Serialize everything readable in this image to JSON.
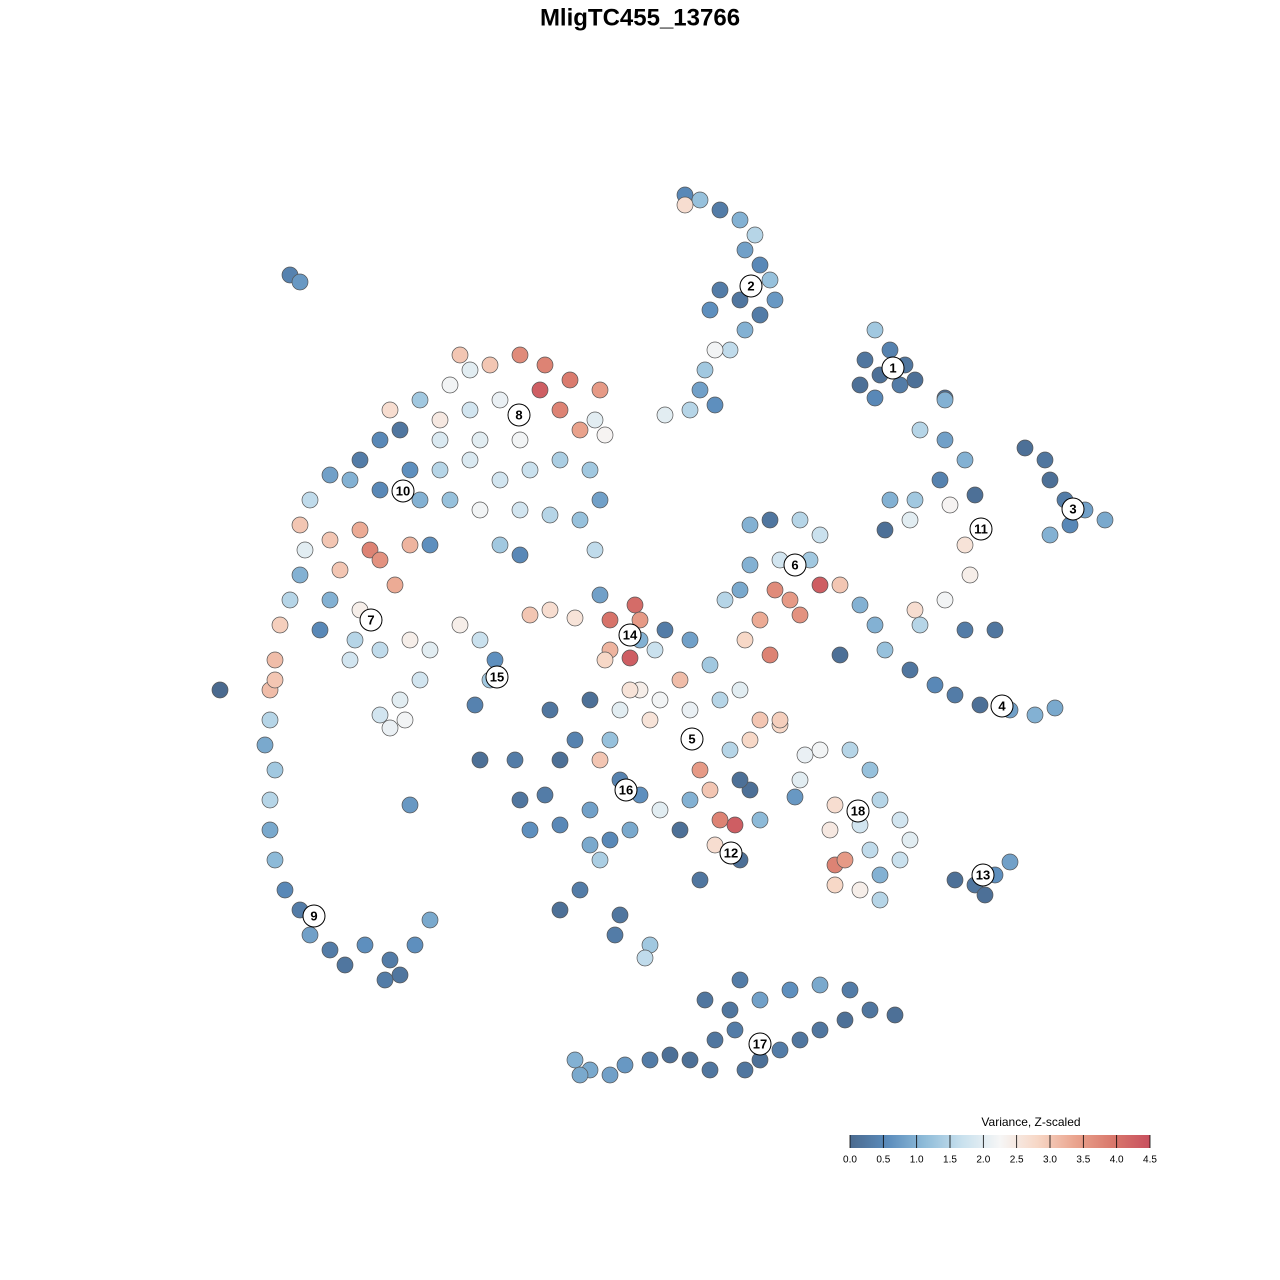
{
  "chart_data": {
    "type": "scatter",
    "title": "MligTC455_13766",
    "xlim": [
      0,
      1280
    ],
    "ylim": [
      1280,
      0
    ],
    "x": [
      685,
      700,
      720,
      740,
      755,
      745,
      760,
      770,
      775,
      760,
      740,
      720,
      710,
      745,
      730,
      715,
      705,
      700,
      715,
      690,
      665,
      685,
      875,
      865,
      880,
      900,
      915,
      875,
      890,
      905,
      860,
      945,
      1025,
      1045,
      1050,
      1065,
      1085,
      1105,
      1050,
      1070,
      920,
      945,
      965,
      940,
      915,
      890,
      885,
      910,
      950,
      975,
      965,
      970,
      945,
      915,
      920,
      965,
      995,
      945,
      860,
      875,
      885,
      910,
      935,
      955,
      980,
      1010,
      1035,
      1055,
      840,
      750,
      770,
      800,
      820,
      810,
      780,
      750,
      740,
      775,
      790,
      760,
      800,
      820,
      840,
      770,
      745,
      725,
      390,
      420,
      450,
      470,
      490,
      520,
      545,
      570,
      600,
      540,
      560,
      580,
      605,
      500,
      470,
      440,
      400,
      380,
      360,
      350,
      330,
      310,
      300,
      305,
      300,
      290,
      280,
      330,
      360,
      370,
      340,
      380,
      395,
      410,
      360,
      330,
      320,
      380,
      410,
      440,
      470,
      500,
      530,
      560,
      590,
      600,
      580,
      550,
      520,
      480,
      450,
      420,
      430,
      500,
      520,
      595,
      440,
      480,
      520,
      460,
      595,
      350,
      380,
      410,
      430,
      420,
      400,
      380,
      405,
      390,
      355,
      275,
      270,
      275,
      220,
      270,
      265,
      275,
      270,
      270,
      275,
      285,
      300,
      310,
      330,
      345,
      365,
      390,
      400,
      385,
      415,
      430,
      410,
      290,
      300,
      460,
      480,
      495,
      490,
      475,
      480,
      515,
      530,
      550,
      575,
      600,
      610,
      635,
      610,
      630,
      640,
      605,
      640,
      665,
      690,
      710,
      680,
      660,
      640,
      620,
      650,
      690,
      720,
      740,
      760,
      780,
      750,
      730,
      700,
      710,
      690,
      720,
      735,
      715,
      700,
      740,
      760,
      750,
      680,
      660,
      640,
      620,
      600,
      610,
      590,
      575,
      560,
      545,
      520,
      530,
      560,
      590,
      610,
      630,
      600,
      580,
      560,
      620,
      615,
      650,
      645,
      550,
      590,
      655,
      630,
      800,
      795,
      740,
      820,
      850,
      870,
      880,
      900,
      910,
      900,
      880,
      860,
      835,
      835,
      845,
      830,
      835,
      860,
      870,
      780,
      805,
      880,
      955,
      975,
      995,
      1010,
      985,
      575,
      590,
      610,
      625,
      650,
      670,
      690,
      710,
      715,
      735,
      745,
      760,
      780,
      800,
      820,
      845,
      870,
      895,
      760,
      790,
      820,
      850,
      740,
      705,
      730,
      580
    ],
    "y": [
      195,
      200,
      210,
      220,
      235,
      250,
      265,
      280,
      300,
      315,
      300,
      290,
      310,
      330,
      350,
      350,
      370,
      390,
      405,
      410,
      415,
      205,
      330,
      360,
      375,
      385,
      380,
      398,
      350,
      365,
      385,
      398,
      448,
      460,
      480,
      500,
      510,
      520,
      535,
      525,
      430,
      440,
      460,
      480,
      500,
      500,
      530,
      520,
      505,
      495,
      545,
      575,
      600,
      610,
      625,
      630,
      630,
      400,
      605,
      625,
      650,
      670,
      685,
      695,
      705,
      710,
      715,
      708,
      655,
      525,
      520,
      520,
      535,
      560,
      560,
      565,
      590,
      590,
      600,
      620,
      615,
      585,
      585,
      655,
      640,
      600,
      410,
      400,
      385,
      370,
      365,
      355,
      365,
      380,
      390,
      390,
      410,
      430,
      435,
      400,
      410,
      420,
      430,
      440,
      460,
      480,
      475,
      500,
      525,
      550,
      575,
      600,
      625,
      540,
      530,
      550,
      570,
      560,
      585,
      545,
      610,
      600,
      630,
      490,
      470,
      470,
      460,
      480,
      470,
      460,
      470,
      500,
      520,
      515,
      510,
      510,
      500,
      500,
      545,
      545,
      555,
      550,
      440,
      440,
      440,
      355,
      420,
      660,
      650,
      640,
      650,
      680,
      700,
      715,
      720,
      728,
      640,
      660,
      690,
      680,
      690,
      720,
      745,
      770,
      800,
      830,
      860,
      890,
      910,
      935,
      950,
      965,
      945,
      960,
      975,
      980,
      945,
      920,
      805,
      275,
      282,
      625,
      640,
      660,
      680,
      705,
      760,
      760,
      615,
      610,
      618,
      595,
      620,
      605,
      650,
      658,
      620,
      660,
      640,
      630,
      640,
      665,
      680,
      700,
      690,
      710,
      720,
      710,
      700,
      690,
      720,
      725,
      740,
      750,
      770,
      790,
      800,
      820,
      825,
      845,
      880,
      860,
      820,
      790,
      830,
      810,
      795,
      780,
      760,
      740,
      700,
      740,
      760,
      795,
      800,
      830,
      825,
      810,
      840,
      830,
      860,
      890,
      910,
      915,
      935,
      945,
      958,
      710,
      845,
      650,
      690,
      780,
      797,
      780,
      750,
      750,
      770,
      800,
      820,
      840,
      860,
      875,
      890,
      885,
      865,
      860,
      830,
      805,
      825,
      850,
      720,
      755,
      900,
      880,
      885,
      875,
      862,
      895,
      1060,
      1070,
      1075,
      1065,
      1060,
      1055,
      1060,
      1070,
      1040,
      1030,
      1070,
      1060,
      1050,
      1040,
      1030,
      1020,
      1010,
      1015,
      1000,
      990,
      985,
      990,
      980,
      1000,
      1010,
      1075
    ],
    "values": [
      0.5,
      1.2,
      0.3,
      1.0,
      1.5,
      0.8,
      0.5,
      1.2,
      0.7,
      0.3,
      0.2,
      0.3,
      0.6,
      1.0,
      1.6,
      2.2,
      1.3,
      0.8,
      0.6,
      1.5,
      2.0,
      2.7,
      1.3,
      0.2,
      0.1,
      0.3,
      0.1,
      0.5,
      0.4,
      0.2,
      0.1,
      0.1,
      0.1,
      0.2,
      0.1,
      0.3,
      0.8,
      0.9,
      1.0,
      0.5,
      1.5,
      0.8,
      1.0,
      0.4,
      1.3,
      1.0,
      0.1,
      2.0,
      2.3,
      0.1,
      2.6,
      2.4,
      2.2,
      2.7,
      1.5,
      0.3,
      0.2,
      1.0,
      1.0,
      1.0,
      1.2,
      0.2,
      0.5,
      0.3,
      0.1,
      0.8,
      1.0,
      0.9,
      0.1,
      1.0,
      0.2,
      1.5,
      1.7,
      1.3,
      1.8,
      1.0,
      0.9,
      3.7,
      3.5,
      3.3,
      3.6,
      4.3,
      3.0,
      3.8,
      2.8,
      1.5,
      2.7,
      1.3,
      2.2,
      2.0,
      3.0,
      3.7,
      3.8,
      3.9,
      3.5,
      4.3,
      3.8,
      3.4,
      2.3,
      2.1,
      1.8,
      2.5,
      0.2,
      0.5,
      0.3,
      1.0,
      0.8,
      1.6,
      3.0,
      2.0,
      1.0,
      1.5,
      2.9,
      3.0,
      3.3,
      3.8,
      3.0,
      3.6,
      3.3,
      3.2,
      2.4,
      1.0,
      0.5,
      0.5,
      0.6,
      1.5,
      1.9,
      1.8,
      1.7,
      1.4,
      1.3,
      0.8,
      1.2,
      1.5,
      1.8,
      2.2,
      1.2,
      1.0,
      0.6,
      1.3,
      0.5,
      1.6,
      1.9,
      2.0,
      2.2,
      3.0,
      2.0,
      1.8,
      1.6,
      2.4,
      2.0,
      1.8,
      2.0,
      1.8,
      2.2,
      2.1,
      1.5,
      3.1,
      3.1,
      3.0,
      0.0,
      1.5,
      0.9,
      1.3,
      1.5,
      0.9,
      1.1,
      0.5,
      0.3,
      0.8,
      0.3,
      0.2,
      0.6,
      0.3,
      0.2,
      0.3,
      0.6,
      0.9,
      0.7,
      0.4,
      0.7,
      2.4,
      1.7,
      0.6,
      1.3,
      0.4,
      0.1,
      0.3,
      3.0,
      2.7,
      2.6,
      0.8,
      4.0,
      4.1,
      3.2,
      4.3,
      3.5,
      2.8,
      1.0,
      0.3,
      0.8,
      1.3,
      3.1,
      2.2,
      2.4,
      2.0,
      2.6,
      2.1,
      1.5,
      2.0,
      3.0,
      2.8,
      2.8,
      1.5,
      3.5,
      3.0,
      1.0,
      3.8,
      4.3,
      2.7,
      0.2,
      0.1,
      1.1,
      0.1,
      0.1,
      2.0,
      0.6,
      0.4,
      3.0,
      1.2,
      0.1,
      0.4,
      0.1,
      0.3,
      0.2,
      0.6,
      0.5,
      0.8,
      0.5,
      0.9,
      1.4,
      0.3,
      0.1,
      0.2,
      0.3,
      1.3,
      1.6,
      0.2,
      0.9,
      1.7,
      2.6,
      2.0,
      0.7,
      0.1,
      2.2,
      1.5,
      1.2,
      1.5,
      1.8,
      2.0,
      1.7,
      1.0,
      2.4,
      2.8,
      3.8,
      3.5,
      2.5,
      2.7,
      1.8,
      1.6,
      2.9,
      2.1,
      1.5,
      0.1,
      0.2,
      0.6,
      0.8,
      0.1,
      1.0,
      0.9,
      0.8,
      0.7,
      0.3,
      0.1,
      0.1,
      0.2,
      0.2,
      0.3,
      0.2,
      0.1,
      0.3,
      0.2,
      0.2,
      0.1,
      0.2,
      0.1,
      0.8,
      0.6,
      0.9,
      0.3,
      0.3,
      0.2,
      0.2,
      0.9
    ],
    "clusters": {
      "labels": [
        "1",
        "2",
        "3",
        "4",
        "5",
        "6",
        "7",
        "8",
        "9",
        "10",
        "11",
        "12",
        "13",
        "14",
        "15",
        "16",
        "17",
        "18"
      ],
      "x": [
        893,
        751,
        1073,
        1002,
        692,
        795,
        371,
        519,
        314,
        403,
        981,
        731,
        983,
        630,
        497,
        626,
        760,
        858
      ],
      "y": [
        368,
        286,
        509,
        706,
        739,
        565,
        620,
        415,
        916,
        491,
        529,
        853,
        875,
        635,
        677,
        790,
        1044,
        811
      ]
    },
    "colorbar": {
      "title": "Variance, Z-scaled",
      "clim": [
        0,
        4.5
      ],
      "colors": [
        "#4a6a8f",
        "#5b8cbc",
        "#8fbcd9",
        "#c9e1ee",
        "#f6f6f6",
        "#f7d7c6",
        "#eaa48e",
        "#d9786c",
        "#c84f5e"
      ],
      "ticks": [
        {
          "value": 0,
          "label": "0.0"
        },
        0.5,
        {
          "value": 1,
          "label": "1.0"
        },
        1.5,
        {
          "value": 2,
          "label": "2.0"
        },
        2.5,
        {
          "value": 3,
          "label": "3.0"
        },
        3.5,
        {
          "value": 4,
          "label": "4.0"
        },
        4.5
      ]
    }
  }
}
